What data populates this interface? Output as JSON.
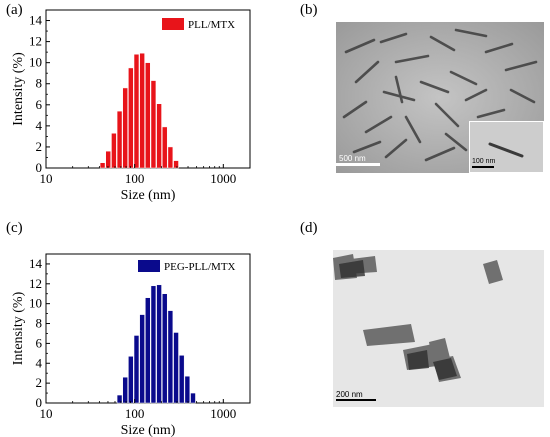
{
  "panels": {
    "a_label": "(a)",
    "b_label": "(b)",
    "c_label": "(c)",
    "d_label": "(d)"
  },
  "chart_data": [
    {
      "type": "bar",
      "panel": "(a)",
      "xlabel": "Size (nm)",
      "ylabel": "Intensity (%)",
      "xscale": "log",
      "xlim": [
        10,
        2000
      ],
      "ylim": [
        0,
        15
      ],
      "xticks": [
        "10",
        "100",
        "1000"
      ],
      "yticks": [
        "0",
        "2",
        "4",
        "6",
        "8",
        "10",
        "12",
        "14"
      ],
      "legend": {
        "label": "PLL/MTX",
        "placement": "top-right"
      },
      "color": "#e8141a",
      "series": [
        {
          "name": "PLL/MTX",
          "x": [
            43.8,
            50.7,
            58.8,
            68.1,
            78.8,
            91.3,
            105.7,
            122.4,
            141.8,
            164.2,
            190.1,
            220.2,
            255.0,
            295.3
          ],
          "values": [
            0.5,
            1.6,
            3.3,
            5.4,
            7.6,
            9.5,
            10.8,
            10.9,
            10.0,
            8.3,
            6.1,
            3.9,
            2.0,
            0.7
          ]
        }
      ]
    },
    {
      "type": "bar",
      "panel": "(c)",
      "xlabel": "Size (nm)",
      "ylabel": "Intensity (%)",
      "xscale": "log",
      "xlim": [
        10,
        2000
      ],
      "ylim": [
        0,
        15
      ],
      "xticks": [
        "10",
        "100",
        "1000"
      ],
      "yticks": [
        "0",
        "2",
        "4",
        "6",
        "8",
        "10",
        "12",
        "14"
      ],
      "legend": {
        "label": "PEG-PLL/MTX",
        "placement": "top-right"
      },
      "color": "#0a0a8c",
      "series": [
        {
          "name": "PEG-PLL/MTX",
          "x": [
            68.1,
            78.8,
            91.3,
            105.7,
            122.4,
            141.8,
            164.2,
            190.1,
            220.2,
            255.0,
            295.3,
            342.0,
            396.1,
            458.7
          ],
          "values": [
            0.8,
            2.6,
            4.7,
            6.8,
            8.9,
            10.6,
            11.8,
            11.9,
            11.0,
            9.3,
            7.1,
            4.8,
            2.7,
            1.0
          ]
        }
      ]
    }
  ],
  "tem_b": {
    "scalebar_main": "500 nm",
    "scalebar_inset": "100 nm"
  },
  "tem_d": {
    "scalebar_main": "200 nm"
  }
}
